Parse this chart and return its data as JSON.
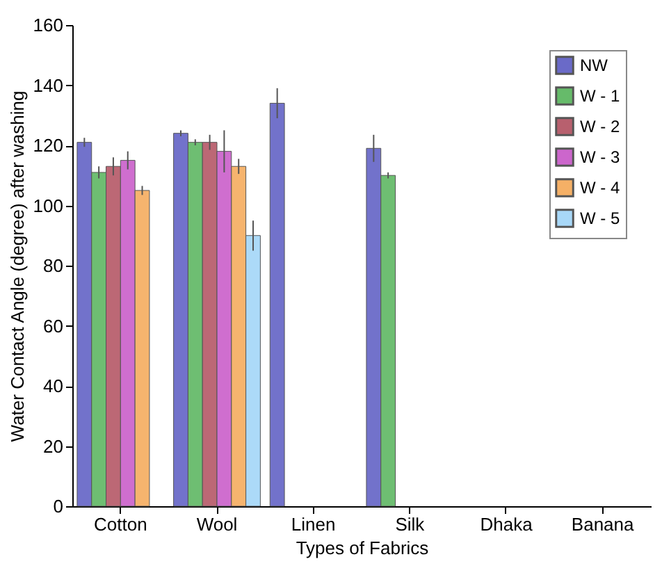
{
  "chart_data": {
    "type": "bar",
    "xlabel": "Types of Fabrics",
    "ylabel": "Water Contact Angle (degree) after washing",
    "categories": [
      "Cotton",
      "Wool",
      "Linen",
      "Silk",
      "Dhaka",
      "Banana"
    ],
    "ylim": [
      0,
      160
    ],
    "yticks": [
      0,
      20,
      40,
      60,
      80,
      100,
      120,
      140,
      160
    ],
    "grid": false,
    "legend": "top right",
    "series": [
      {
        "name": "NW",
        "color": "#6a6ac8",
        "values": [
          121,
          124,
          134,
          119,
          null,
          null
        ],
        "errors": [
          1.5,
          1,
          5,
          4.5,
          null,
          null
        ]
      },
      {
        "name": "W - 1",
        "color": "#66bb6a",
        "values": [
          111,
          121,
          null,
          110,
          null,
          null
        ],
        "errors": [
          2,
          1,
          null,
          1,
          null,
          null
        ]
      },
      {
        "name": "W - 2",
        "color": "#b8606e",
        "values": [
          113,
          121,
          null,
          null,
          null,
          null
        ],
        "errors": [
          3,
          2.5,
          null,
          null,
          null,
          null
        ]
      },
      {
        "name": "W - 3",
        "color": "#cc66cc",
        "values": [
          115,
          118,
          null,
          null,
          null,
          null
        ],
        "errors": [
          3,
          7,
          null,
          null,
          null,
          null
        ]
      },
      {
        "name": "W - 4",
        "color": "#f5b066",
        "values": [
          105,
          113,
          null,
          null,
          null,
          null
        ],
        "errors": [
          1.5,
          2.5,
          null,
          null,
          null,
          null
        ]
      },
      {
        "name": "W - 5",
        "color": "#a8d8f8",
        "values": [
          null,
          90,
          null,
          null,
          null,
          null
        ],
        "errors": [
          null,
          5,
          null,
          null,
          null,
          null
        ]
      }
    ]
  }
}
